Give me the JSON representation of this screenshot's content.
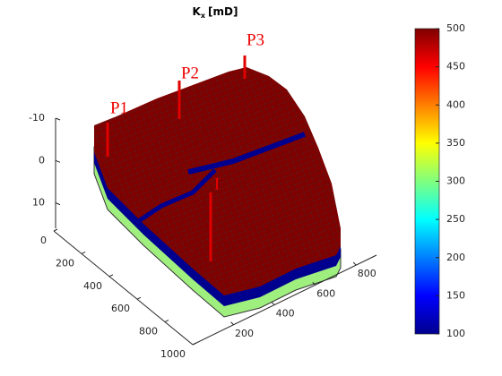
{
  "chart_data": {
    "type": "reservoir3d",
    "title": {
      "base": "K",
      "subscript": "x",
      "suffix": "[mD]"
    },
    "xlim": [
      0,
      1000
    ],
    "xticks": [
      0,
      200,
      400,
      600,
      800,
      1000
    ],
    "ylim": [
      0,
      900
    ],
    "yticks": [
      200,
      400,
      600,
      800
    ],
    "zlim": [
      -10,
      16
    ],
    "zticks": [
      -10,
      0,
      10
    ],
    "zdir": "reverse",
    "colorbar": {
      "colormap": "jet",
      "clim": [
        100,
        500
      ],
      "ticks": [
        100,
        150,
        200,
        250,
        300,
        350,
        400,
        450,
        500
      ]
    },
    "wells": [
      {
        "name": "P1"
      },
      {
        "name": "P2"
      },
      {
        "name": "P3"
      },
      {
        "name": "I"
      }
    ],
    "colors": {
      "high": "#800000",
      "mid": "#00008f",
      "low": "#9fef7f",
      "well": "#e00000"
    }
  }
}
